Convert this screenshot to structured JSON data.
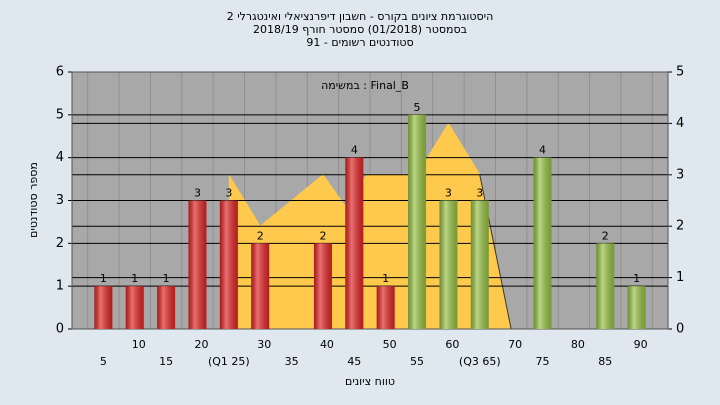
{
  "chart_data": {
    "type": "bar",
    "title": "היסטוגרמת ציונים בקורס - חשבון דיפרנציאלי ואינטגרלי 2",
    "subtitle": "בסמסטר  (01/2018)  סמסטר חורף 2018/19",
    "subtitle2": "סטודנטים רשומים - 91",
    "annotation": "במשימה : Final_B",
    "x_label": "טווח ציונים",
    "y_label": "מספר סטודנטים",
    "categories": [
      "5",
      "10",
      "15",
      "20",
      "(Q1 25)",
      "30",
      "35",
      "40",
      "45",
      "50",
      "55",
      "60",
      "(Q3 65)",
      "70",
      "75",
      "80",
      "85",
      "90"
    ],
    "values": [
      1,
      1,
      1,
      3,
      3,
      2,
      0,
      2,
      4,
      1,
      5,
      3,
      3,
      0,
      4,
      0,
      2,
      1
    ],
    "colors": [
      "#e02424",
      "#e02424",
      "#e02424",
      "#e02424",
      "#e02424",
      "#e02424",
      "#e02424",
      "#e02424",
      "#e02424",
      "#e02424",
      "#96c043",
      "#96c043",
      "#96c043",
      "#96c043",
      "#96c043",
      "#96c043",
      "#96c043",
      "#96c043"
    ],
    "area": {
      "x": [
        25,
        30,
        40,
        43.5,
        47,
        50,
        55,
        60,
        65,
        70
      ],
      "values": [
        3,
        2,
        3,
        2.4,
        3,
        3,
        3,
        4,
        3,
        0
      ],
      "color": "#ffc94d",
      "axis": "y2"
    },
    "ylim": [
      0,
      6
    ],
    "yticks": [
      0,
      1,
      2,
      3,
      4,
      5,
      6
    ],
    "y2lim": [
      0,
      5
    ],
    "y2ticks": [
      0,
      1,
      2,
      3,
      4,
      5
    ],
    "grid": true
  }
}
